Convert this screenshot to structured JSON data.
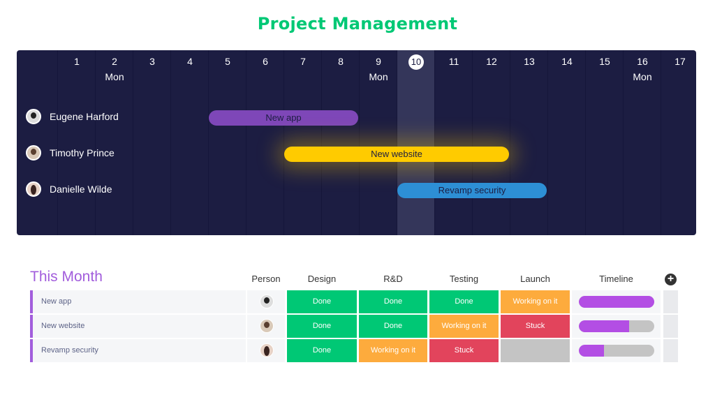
{
  "title": "Project Management",
  "gantt": {
    "days": [
      "1",
      "2",
      "3",
      "4",
      "5",
      "6",
      "7",
      "8",
      "9",
      "10",
      "11",
      "12",
      "13",
      "14",
      "15",
      "16",
      "17"
    ],
    "day_names": {
      "2": "Mon",
      "9": "Mon",
      "16": "Mon"
    },
    "today": "10",
    "people": [
      {
        "name": "Eugene Harford",
        "task": "New app",
        "start": 5,
        "end": 8,
        "color": "#7e47b8"
      },
      {
        "name": "Timothy Prince",
        "task": "New website",
        "start": 7,
        "end": 12,
        "color": "#ffcb00"
      },
      {
        "name": "Danielle Wilde",
        "task": "Revamp security",
        "start": 10,
        "end": 13,
        "color": "#2d8fd5"
      }
    ]
  },
  "board": {
    "section": "This Month",
    "columns": [
      "Person",
      "Design",
      "R&D",
      "Testing",
      "Launch",
      "Timeline"
    ],
    "status_colors": {
      "Done": "#00c875",
      "Working on it": "#fdab3d",
      "Stuck": "#e2445c",
      "": "#c4c4c4"
    },
    "rows": [
      {
        "name": "New app",
        "statuses": [
          "Done",
          "Done",
          "Done",
          "Working on it"
        ],
        "timeline_progress": 1.0
      },
      {
        "name": "New website",
        "statuses": [
          "Done",
          "Done",
          "Working on it",
          "Stuck"
        ],
        "timeline_progress": 0.67
      },
      {
        "name": "Revamp security",
        "statuses": [
          "Done",
          "Working on it",
          "Stuck",
          ""
        ],
        "timeline_progress": 0.33
      }
    ]
  }
}
